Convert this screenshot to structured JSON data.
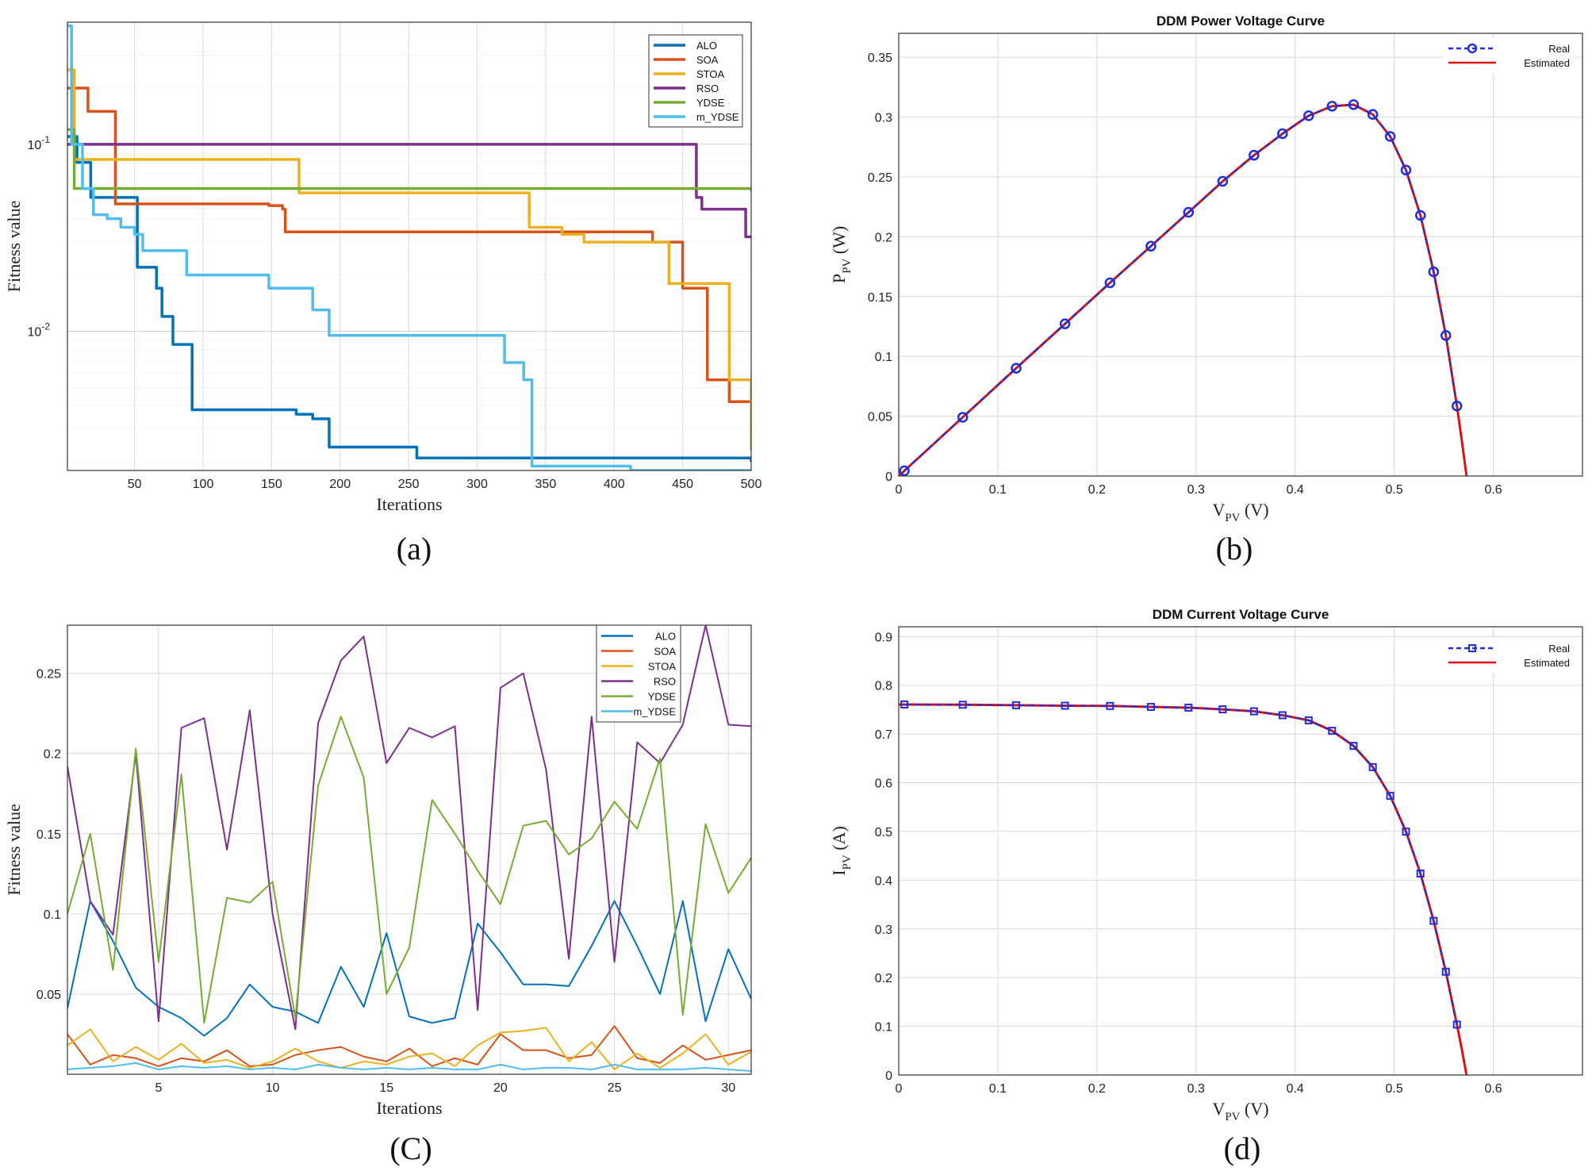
{
  "captions": {
    "a": "(a)",
    "b": "(b)",
    "c": "(C)",
    "d": "(d)"
  },
  "colors": {
    "ALO": "#0072bd",
    "SOA": "#d95319",
    "STOA": "#edb120",
    "RSO": "#7e2f8e",
    "YDSE": "#77ac30",
    "m_YDSE": "#4dbeee",
    "real": "#1f2fd8",
    "estimated": "#e01010"
  },
  "chart_data": [
    {
      "id": "a",
      "type": "line",
      "title": "",
      "xlabel": "Iterations",
      "ylabel": "Fitness value",
      "yscale": "log",
      "xlim": [
        1,
        500
      ],
      "ylim": [
        0.0018,
        0.45
      ],
      "xticks": [
        50,
        100,
        150,
        200,
        250,
        300,
        350,
        400,
        450,
        500
      ],
      "yticks": [
        {
          "value": 0.1,
          "label": "10",
          "exp": "-1"
        },
        {
          "value": 0.01,
          "label": "10",
          "exp": "-2"
        }
      ],
      "legend": [
        "ALO",
        "SOA",
        "STOA",
        "RSO",
        "YDSE",
        "m_YDSE"
      ],
      "series": [
        {
          "name": "ALO",
          "step": true,
          "points": [
            [
              1,
              0.11
            ],
            [
              8,
              0.08
            ],
            [
              18,
              0.052
            ],
            [
              50,
              0.052
            ],
            [
              52,
              0.022
            ],
            [
              62,
              0.022
            ],
            [
              66,
              0.017
            ],
            [
              70,
              0.012
            ],
            [
              78,
              0.0085
            ],
            [
              90,
              0.0085
            ],
            [
              92,
              0.0038
            ],
            [
              148,
              0.0038
            ],
            [
              168,
              0.0036
            ],
            [
              180,
              0.0034
            ],
            [
              192,
              0.0024
            ],
            [
              252,
              0.0024
            ],
            [
              256,
              0.0021
            ],
            [
              500,
              0.002
            ]
          ]
        },
        {
          "name": "SOA",
          "step": true,
          "points": [
            [
              1,
              0.2
            ],
            [
              16,
              0.15
            ],
            [
              34,
              0.15
            ],
            [
              36,
              0.048
            ],
            [
              148,
              0.047
            ],
            [
              158,
              0.045
            ],
            [
              160,
              0.034
            ],
            [
              390,
              0.034
            ],
            [
              428,
              0.03
            ],
            [
              448,
              0.03
            ],
            [
              450,
              0.017
            ],
            [
              466,
              0.017
            ],
            [
              468,
              0.0055
            ],
            [
              482,
              0.0055
            ],
            [
              484,
              0.0042
            ],
            [
              500,
              0.0042
            ]
          ]
        },
        {
          "name": "STOA",
          "step": true,
          "points": [
            [
              1,
              0.25
            ],
            [
              6,
              0.083
            ],
            [
              168,
              0.083
            ],
            [
              170,
              0.055
            ],
            [
              336,
              0.055
            ],
            [
              338,
              0.036
            ],
            [
              360,
              0.036
            ],
            [
              362,
              0.033
            ],
            [
              376,
              0.033
            ],
            [
              378,
              0.03
            ],
            [
              436,
              0.03
            ],
            [
              440,
              0.018
            ],
            [
              482,
              0.018
            ],
            [
              484,
              0.0055
            ],
            [
              498,
              0.0055
            ],
            [
              500,
              0.0023
            ]
          ]
        },
        {
          "name": "RSO",
          "step": true,
          "points": [
            [
              1,
              0.1
            ],
            [
              456,
              0.1
            ],
            [
              460,
              0.052
            ],
            [
              464,
              0.045
            ],
            [
              494,
              0.045
            ],
            [
              496,
              0.032
            ],
            [
              500,
              0.032
            ]
          ]
        },
        {
          "name": "YDSE",
          "step": true,
          "points": [
            [
              1,
              0.12
            ],
            [
              6,
              0.058
            ],
            [
              500,
              0.056
            ]
          ]
        },
        {
          "name": "m_YDSE",
          "step": true,
          "points": [
            [
              1,
              0.43
            ],
            [
              4,
              0.1
            ],
            [
              12,
              0.058
            ],
            [
              20,
              0.042
            ],
            [
              30,
              0.04
            ],
            [
              40,
              0.036
            ],
            [
              50,
              0.033
            ],
            [
              56,
              0.027
            ],
            [
              86,
              0.027
            ],
            [
              88,
              0.02
            ],
            [
              146,
              0.02
            ],
            [
              148,
              0.017
            ],
            [
              178,
              0.017
            ],
            [
              180,
              0.013
            ],
            [
              190,
              0.013
            ],
            [
              192,
              0.0095
            ],
            [
              316,
              0.0095
            ],
            [
              320,
              0.0068
            ],
            [
              330,
              0.0068
            ],
            [
              334,
              0.0055
            ],
            [
              338,
              0.0055
            ],
            [
              340,
              0.0019
            ],
            [
              410,
              0.0019
            ],
            [
              412,
              0.0018
            ],
            [
              500,
              0.0018
            ]
          ]
        }
      ]
    },
    {
      "id": "b",
      "type": "line",
      "title": "DDM Power Voltage Curve",
      "xlabel": "V",
      "xlabel_sub": "PV",
      "xlabel_unit": " (V)",
      "ylabel": "P",
      "ylabel_sub": "PV",
      "ylabel_unit": " (W)",
      "xlim": [
        0,
        0.69
      ],
      "ylim": [
        0,
        0.37
      ],
      "xticks": [
        0,
        0.1,
        0.2,
        0.3,
        0.4,
        0.5,
        0.6
      ],
      "yticks": [
        0,
        0.05,
        0.1,
        0.15,
        0.2,
        0.25,
        0.3,
        0.35
      ],
      "legend": [
        "Real",
        "Estimated"
      ],
      "series": [
        {
          "name": "Estimated",
          "points": [
            [
              0,
              0
            ],
            [
              0.0057,
              0.0044
            ],
            [
              0.0646,
              0.0491
            ],
            [
              0.1185,
              0.0901
            ],
            [
              0.1678,
              0.1272
            ],
            [
              0.2132,
              0.1615
            ],
            [
              0.2545,
              0.1921
            ],
            [
              0.2924,
              0.2204
            ],
            [
              0.3269,
              0.2463
            ],
            [
              0.3585,
              0.2681
            ],
            [
              0.3873,
              0.2861
            ],
            [
              0.4137,
              0.3011
            ],
            [
              0.4373,
              0.3091
            ],
            [
              0.459,
              0.3104
            ],
            [
              0.4784,
              0.3022
            ],
            [
              0.496,
              0.2838
            ],
            [
              0.5119,
              0.2557
            ],
            [
              0.5265,
              0.2178
            ],
            [
              0.5398,
              0.1707
            ],
            [
              0.5521,
              0.1175
            ],
            [
              0.5633,
              0.0585
            ],
            [
              0.5685,
              0.028
            ],
            [
              0.573,
              0
            ]
          ]
        },
        {
          "name": "Real",
          "markers": "circle",
          "points": [
            [
              0.0057,
              0.0044
            ],
            [
              0.0646,
              0.0491
            ],
            [
              0.1185,
              0.0901
            ],
            [
              0.1678,
              0.1272
            ],
            [
              0.2132,
              0.1615
            ],
            [
              0.2545,
              0.1921
            ],
            [
              0.2924,
              0.2204
            ],
            [
              0.3269,
              0.2463
            ],
            [
              0.3585,
              0.2681
            ],
            [
              0.3873,
              0.2861
            ],
            [
              0.4137,
              0.3011
            ],
            [
              0.4373,
              0.3091
            ],
            [
              0.459,
              0.3104
            ],
            [
              0.4784,
              0.3022
            ],
            [
              0.496,
              0.2838
            ],
            [
              0.5119,
              0.2557
            ],
            [
              0.5265,
              0.2178
            ],
            [
              0.5398,
              0.1707
            ],
            [
              0.5521,
              0.1175
            ],
            [
              0.5633,
              0.0585
            ]
          ]
        }
      ]
    },
    {
      "id": "c",
      "type": "line",
      "title": "",
      "xlabel": "Iterations",
      "ylabel": "Fitness value",
      "xlim": [
        1,
        31
      ],
      "ylim": [
        0,
        0.28
      ],
      "xticks": [
        5,
        10,
        15,
        20,
        25,
        30
      ],
      "yticks": [
        0.05,
        0.1,
        0.15,
        0.2,
        0.25
      ],
      "legend": [
        "ALO",
        "SOA",
        "STOA",
        "RSO",
        "YDSE",
        "m_YDSE"
      ],
      "series": [
        {
          "name": "ALO",
          "values": [
            0.041,
            0.108,
            0.083,
            0.054,
            0.042,
            0.035,
            0.024,
            0.035,
            0.056,
            0.042,
            0.039,
            0.032,
            0.067,
            0.042,
            0.088,
            0.036,
            0.032,
            0.035,
            0.094,
            0.076,
            0.056,
            0.056,
            0.055,
            0.08,
            0.108,
            0.08,
            0.05,
            0.108,
            0.033,
            0.078,
            0.047
          ]
        },
        {
          "name": "SOA",
          "values": [
            0.025,
            0.006,
            0.012,
            0.01,
            0.005,
            0.01,
            0.008,
            0.015,
            0.005,
            0.006,
            0.012,
            0.015,
            0.017,
            0.011,
            0.008,
            0.016,
            0.005,
            0.01,
            0.006,
            0.025,
            0.015,
            0.015,
            0.01,
            0.012,
            0.03,
            0.01,
            0.007,
            0.018,
            0.009,
            0.012,
            0.015
          ]
        },
        {
          "name": "STOA",
          "values": [
            0.018,
            0.028,
            0.008,
            0.017,
            0.009,
            0.019,
            0.007,
            0.009,
            0.004,
            0.008,
            0.016,
            0.008,
            0.004,
            0.008,
            0.006,
            0.011,
            0.013,
            0.005,
            0.018,
            0.026,
            0.027,
            0.029,
            0.008,
            0.02,
            0.003,
            0.013,
            0.004,
            0.013,
            0.025,
            0.006,
            0.014
          ]
        },
        {
          "name": "RSO",
          "values": [
            0.192,
            0.108,
            0.087,
            0.2,
            0.033,
            0.216,
            0.222,
            0.14,
            0.227,
            0.1,
            0.028,
            0.219,
            0.258,
            0.273,
            0.194,
            0.216,
            0.21,
            0.217,
            0.04,
            0.241,
            0.25,
            0.19,
            0.072,
            0.223,
            0.07,
            0.207,
            0.194,
            0.218,
            0.28,
            0.218,
            0.217
          ]
        },
        {
          "name": "YDSE",
          "values": [
            0.1,
            0.15,
            0.065,
            0.203,
            0.07,
            0.187,
            0.032,
            0.11,
            0.107,
            0.12,
            0.035,
            0.18,
            0.223,
            0.185,
            0.05,
            0.079,
            0.171,
            0.15,
            0.127,
            0.106,
            0.155,
            0.158,
            0.137,
            0.147,
            0.17,
            0.153,
            0.197,
            0.037,
            0.156,
            0.113,
            0.135
          ]
        },
        {
          "name": "m_YDSE",
          "values": [
            0.003,
            0.004,
            0.005,
            0.007,
            0.003,
            0.005,
            0.004,
            0.005,
            0.003,
            0.004,
            0.003,
            0.006,
            0.004,
            0.003,
            0.004,
            0.003,
            0.004,
            0.003,
            0.003,
            0.006,
            0.003,
            0.004,
            0.004,
            0.003,
            0.006,
            0.003,
            0.003,
            0.003,
            0.004,
            0.003,
            0.002
          ]
        }
      ]
    },
    {
      "id": "d",
      "type": "line",
      "title": "DDM Current Voltage Curve",
      "xlabel": "V",
      "xlabel_sub": "PV",
      "xlabel_unit": " (V)",
      "ylabel": "I",
      "ylabel_sub": "PV",
      "ylabel_unit": " (A)",
      "xlim": [
        0,
        0.69
      ],
      "ylim": [
        0,
        0.92
      ],
      "xticks": [
        0,
        0.1,
        0.2,
        0.3,
        0.4,
        0.5,
        0.6
      ],
      "yticks": [
        0,
        0.1,
        0.2,
        0.3,
        0.4,
        0.5,
        0.6,
        0.7,
        0.8,
        0.9
      ],
      "legend": [
        "Real",
        "Estimated"
      ],
      "series": [
        {
          "name": "Estimated",
          "points": [
            [
              0,
              0.7605
            ],
            [
              0.0057,
              0.7605
            ],
            [
              0.0646,
              0.76
            ],
            [
              0.1185,
              0.759
            ],
            [
              0.1678,
              0.758
            ],
            [
              0.2132,
              0.7575
            ],
            [
              0.2545,
              0.7555
            ],
            [
              0.2924,
              0.754
            ],
            [
              0.3269,
              0.7505
            ],
            [
              0.3585,
              0.7465
            ],
            [
              0.3873,
              0.7385
            ],
            [
              0.4137,
              0.728
            ],
            [
              0.4373,
              0.7065
            ],
            [
              0.459,
              0.6755
            ],
            [
              0.4784,
              0.632
            ],
            [
              0.496,
              0.573
            ],
            [
              0.5119,
              0.4995
            ],
            [
              0.5265,
              0.4135
            ],
            [
              0.5398,
              0.3165
            ],
            [
              0.5521,
              0.212
            ],
            [
              0.5633,
              0.1035
            ],
            [
              0.5685,
              0.05
            ],
            [
              0.573,
              0
            ]
          ]
        },
        {
          "name": "Real",
          "markers": "square",
          "points": [
            [
              0.0057,
              0.7605
            ],
            [
              0.0646,
              0.76
            ],
            [
              0.1185,
              0.759
            ],
            [
              0.1678,
              0.758
            ],
            [
              0.2132,
              0.7575
            ],
            [
              0.2545,
              0.7555
            ],
            [
              0.2924,
              0.754
            ],
            [
              0.3269,
              0.7505
            ],
            [
              0.3585,
              0.7465
            ],
            [
              0.3873,
              0.7385
            ],
            [
              0.4137,
              0.728
            ],
            [
              0.4373,
              0.7065
            ],
            [
              0.459,
              0.6755
            ],
            [
              0.4784,
              0.632
            ],
            [
              0.496,
              0.573
            ],
            [
              0.5119,
              0.4995
            ],
            [
              0.5265,
              0.4135
            ],
            [
              0.5398,
              0.3165
            ],
            [
              0.5521,
              0.212
            ],
            [
              0.5633,
              0.1035
            ]
          ]
        }
      ]
    }
  ]
}
